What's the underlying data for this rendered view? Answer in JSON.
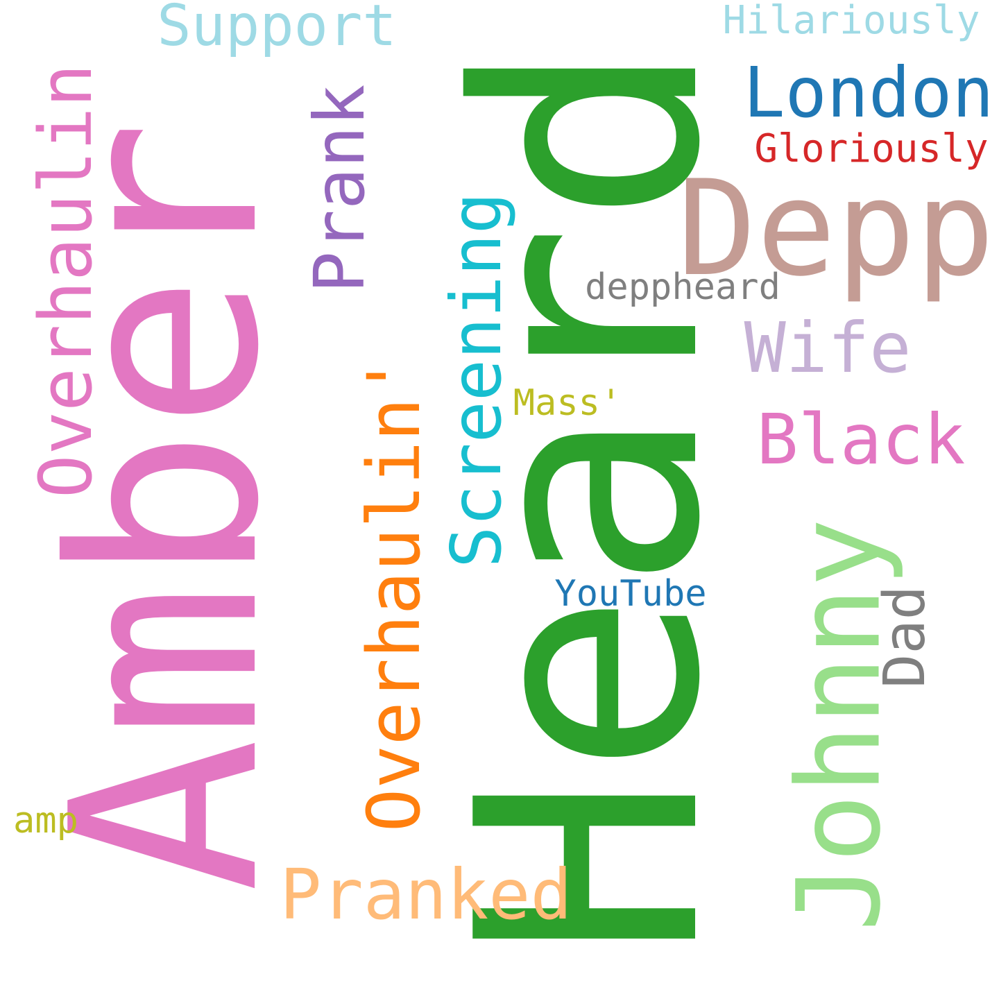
{
  "words": [
    {
      "key": "amber",
      "text": "Amber",
      "color": "#e377c2"
    },
    {
      "key": "heard",
      "text": "Heard",
      "color": "#2ca02c"
    },
    {
      "key": "depp",
      "text": "Depp",
      "color": "#c49c94"
    },
    {
      "key": "johnny",
      "text": "Johnny",
      "color": "#98df8a"
    },
    {
      "key": "overhaulin",
      "text": "Overhaulin",
      "color": "#e377c2"
    },
    {
      "key": "overhaulin2",
      "text": "Overhaulin'",
      "color": "#ff7f0e"
    },
    {
      "key": "screening",
      "text": "Screening",
      "color": "#17becf"
    },
    {
      "key": "prank",
      "text": "Prank",
      "color": "#9467bd"
    },
    {
      "key": "support",
      "text": "Support",
      "color": "#9edae5"
    },
    {
      "key": "hilariously",
      "text": "Hilariously",
      "color": "#9edae5"
    },
    {
      "key": "london",
      "text": "London",
      "color": "#1f77b4"
    },
    {
      "key": "gloriously",
      "text": "Gloriously",
      "color": "#d62728"
    },
    {
      "key": "deppheard",
      "text": "deppheard",
      "color": "#7f7f7f"
    },
    {
      "key": "wife",
      "text": "Wife",
      "color": "#c5b0d5"
    },
    {
      "key": "black",
      "text": "Black",
      "color": "#e377c2"
    },
    {
      "key": "mass",
      "text": "Mass'",
      "color": "#bcbd22"
    },
    {
      "key": "youtube",
      "text": "YouTube",
      "color": "#1f77b4"
    },
    {
      "key": "dad",
      "text": "Dad",
      "color": "#7f7f7f"
    },
    {
      "key": "amp",
      "text": "amp",
      "color": "#bcbd22"
    },
    {
      "key": "pranked",
      "text": "Pranked",
      "color": "#ffbb78"
    }
  ]
}
